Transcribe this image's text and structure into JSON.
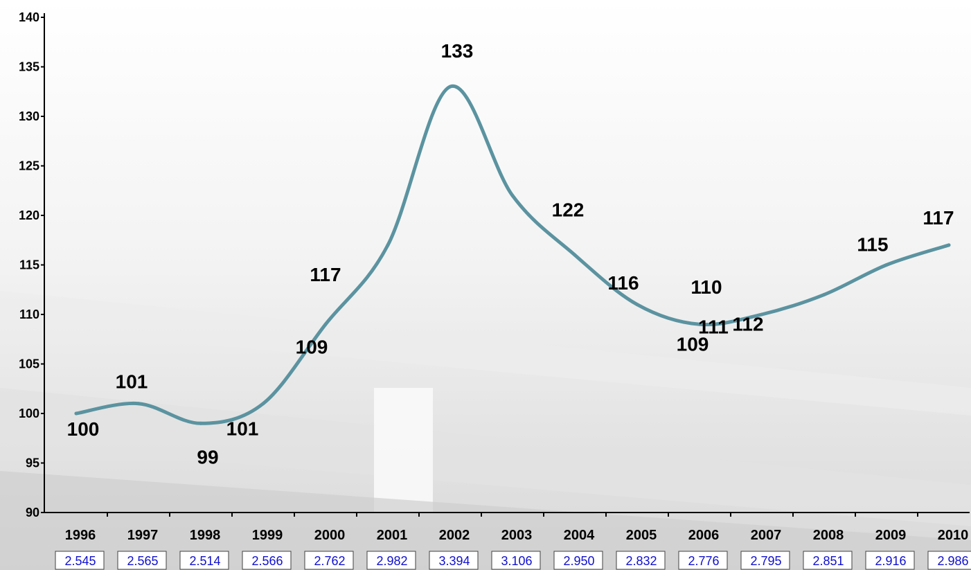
{
  "chart_data": {
    "type": "line",
    "categories": [
      "1996",
      "1997",
      "1998",
      "1999",
      "2000",
      "2001",
      "2002",
      "2003",
      "2004",
      "2005",
      "2006",
      "2007",
      "2008",
      "2009",
      "2010"
    ],
    "series": [
      {
        "values": [
          100,
          101,
          99,
          101,
          109,
          117,
          133,
          122,
          116,
          111,
          109,
          110,
          112,
          115,
          117
        ]
      }
    ],
    "data_labels": [
      "100",
      "101",
      "99",
      "101",
      "109",
      "117",
      "133",
      "122",
      "116",
      "111",
      "109",
      "110",
      "112",
      "115",
      "117"
    ],
    "table_values": [
      "2.545",
      "2.565",
      "2.514",
      "2.566",
      "2.762",
      "2.982",
      "3.394",
      "3.106",
      "2.950",
      "2.832",
      "2.776",
      "2.795",
      "2.851",
      "2.916",
      "2.986"
    ],
    "y_ticks": [
      "90",
      "95",
      "100",
      "105",
      "110",
      "115",
      "120",
      "125",
      "130",
      "135",
      "140"
    ],
    "ylim": [
      90,
      140
    ],
    "title": "",
    "xlabel": "",
    "ylabel": "",
    "grid": false,
    "line_color": "#5b93a0",
    "axis_color": "#000000",
    "table_text_color": "#1010d0"
  }
}
